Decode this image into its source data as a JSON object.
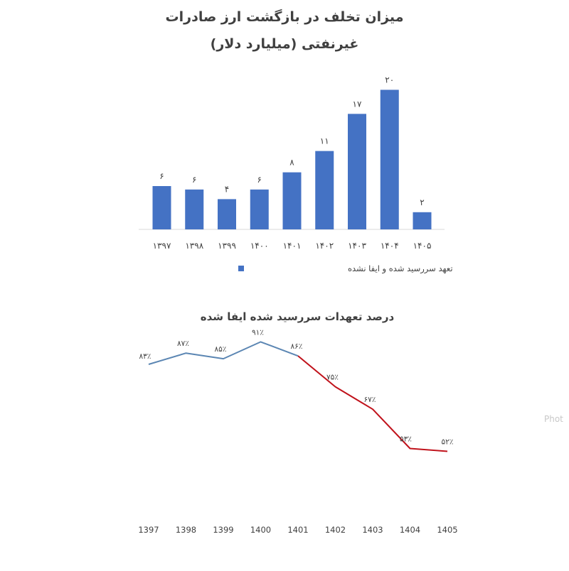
{
  "chart_data": [
    {
      "type": "bar",
      "title_line1": "میزان تخلف در بازگشت ارز صادرات",
      "title_line2": "غیرنفتی (میلیارد دلار)",
      "categories": [
        "۱۳۹۷",
        "۱۳۹۸",
        "۱۳۹۹",
        "۱۴۰۰",
        "۱۴۰۱",
        "۱۴۰۲",
        "۱۴۰۳",
        "۱۴۰۴",
        "۱۴۰۵"
      ],
      "values": [
        6.3,
        5.8,
        4.4,
        5.8,
        8.3,
        11.4,
        16.8,
        20.3,
        2.5
      ],
      "value_labels": [
        "۶",
        "۶",
        "۴",
        "۶",
        "۸",
        "۱۱",
        "۱۷",
        "۲۰",
        "۲"
      ],
      "series": [
        {
          "name": "تعهد سررسید شده و ایفا نشده",
          "color": "#4472c4"
        }
      ],
      "ylim": [
        0,
        22
      ],
      "grid": false,
      "legend_position": "bottom"
    },
    {
      "type": "line",
      "title": "درصد تعهدات سررسید شده ایفا شده",
      "categories": [
        "1397",
        "1398",
        "1399",
        "1400",
        "1401",
        "1402",
        "1403",
        "1404",
        "1405"
      ],
      "values": [
        83,
        87,
        85,
        91,
        86,
        75,
        67,
        53,
        52
      ],
      "value_labels": [
        "۸۳٪",
        "۸۷٪",
        "۸۵٪",
        "۹۱٪",
        "۸۶٪",
        "۷۵٪",
        "۶۷٪",
        "۵۳٪",
        "۵۲٪"
      ],
      "series": [
        {
          "segment": "1397-1401",
          "color": "#5b86b3"
        },
        {
          "segment": "1401-1405",
          "color": "#c0121b"
        }
      ],
      "ylim": [
        20,
        110
      ],
      "grid": false
    }
  ],
  "watermark": "Phot"
}
